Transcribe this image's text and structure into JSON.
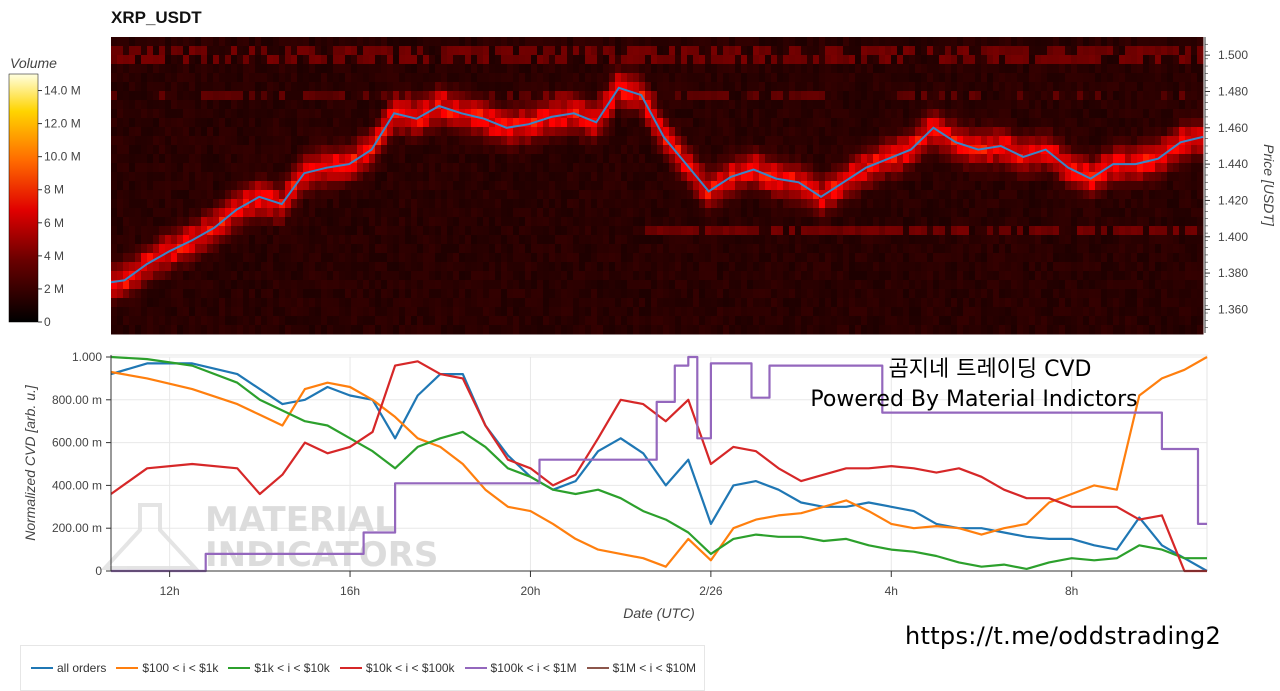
{
  "title": "XRP_USDT",
  "overlay": {
    "line1": "곰지네 트레이딩 CVD",
    "line2": "Powered By Material Indictors"
  },
  "watermark": {
    "line1": "MATERIAL",
    "line2": "INDICATORS"
  },
  "link": "https://t.me/oddstrading2",
  "colors": {
    "all_orders": "#1f77b4",
    "b100_1k": "#ff7f0e",
    "b1k_10k": "#2ca02c",
    "b10k_100k": "#d62728",
    "b100k_1m": "#9467bd",
    "b1m_10m": "#8c564b",
    "price_line": "#3a86c8"
  },
  "chart_data": [
    {
      "type": "heatmap",
      "title": "XRP_USDT",
      "ylabel": "Price [USDT]",
      "ylim": [
        1.347,
        1.51
      ],
      "yticks": [
        "1.360",
        "1.380",
        "1.400",
        "1.420",
        "1.440",
        "1.460",
        "1.480",
        "1.500"
      ],
      "colorbar": {
        "label": "Volume",
        "ticks": [
          "0",
          "2 M",
          "4 M",
          "6 M",
          "8 M",
          "10.0 M",
          "12.0 M",
          "14.0 M"
        ],
        "range": [
          0,
          15
        ]
      },
      "price_series": {
        "name": "price",
        "x_hours": [
          10.7,
          11.0,
          11.5,
          12.0,
          12.5,
          13.0,
          13.5,
          14.0,
          14.5,
          15.0,
          15.5,
          16.0,
          16.5,
          17.0,
          17.5,
          18.0,
          18.5,
          19.0,
          19.5,
          20.0,
          20.5,
          21.0,
          21.5,
          22.0,
          22.5,
          23.0,
          23.5,
          24.0,
          24.5,
          25.0,
          25.5,
          26.0,
          26.5,
          27.0,
          27.5,
          28.0,
          28.5,
          29.0,
          29.5,
          30.0,
          30.5,
          31.0,
          31.5,
          32.0,
          32.5,
          33.0,
          33.5,
          34.0,
          34.5,
          35.0
        ],
        "values": [
          1.375,
          1.376,
          1.385,
          1.392,
          1.398,
          1.405,
          1.415,
          1.422,
          1.418,
          1.435,
          1.438,
          1.44,
          1.448,
          1.468,
          1.465,
          1.472,
          1.468,
          1.465,
          1.46,
          1.462,
          1.466,
          1.468,
          1.463,
          1.482,
          1.478,
          1.455,
          1.44,
          1.425,
          1.433,
          1.437,
          1.432,
          1.43,
          1.422,
          1.43,
          1.438,
          1.443,
          1.448,
          1.46,
          1.452,
          1.448,
          1.45,
          1.444,
          1.448,
          1.438,
          1.432,
          1.44,
          1.44,
          1.443,
          1.452,
          1.455
        ]
      }
    },
    {
      "type": "line",
      "xlabel": "Date (UTC)",
      "ylabel": "Normalized CVD [arb. u.]",
      "xlim_hours": [
        10.7,
        35.0
      ],
      "x_ticks": [
        {
          "hour": 12,
          "label": "12h"
        },
        {
          "hour": 16,
          "label": "16h"
        },
        {
          "hour": 20,
          "label": "20h"
        },
        {
          "hour": 24,
          "label": "2/26"
        },
        {
          "hour": 28,
          "label": "4h"
        },
        {
          "hour": 32,
          "label": "8h"
        }
      ],
      "ylim": [
        0,
        1
      ],
      "y_ticks": [
        {
          "value": 0,
          "label": "0"
        },
        {
          "value": 0.2,
          "label": "200.00 m"
        },
        {
          "value": 0.4,
          "label": "400.00 m"
        },
        {
          "value": 0.6,
          "label": "600.00 m"
        },
        {
          "value": 0.8,
          "label": "800.00 m"
        },
        {
          "value": 1.0,
          "label": "1.000"
        }
      ],
      "series": [
        {
          "name": "all orders",
          "color": "#1f77b4",
          "x": [
            10.7,
            11.5,
            12.5,
            13.5,
            14.0,
            14.5,
            15.0,
            15.5,
            16.0,
            16.5,
            17.0,
            17.5,
            18.0,
            18.5,
            19.0,
            19.5,
            20.0,
            20.5,
            21.0,
            21.5,
            22.0,
            22.5,
            23.0,
            23.5,
            24.0,
            24.5,
            25.0,
            25.5,
            26.0,
            26.5,
            27.0,
            27.5,
            28.0,
            28.5,
            29.0,
            29.5,
            30.0,
            30.5,
            31.0,
            31.5,
            32.0,
            32.5,
            33.0,
            33.5,
            34.0,
            34.5,
            35.0
          ],
          "values": [
            0.92,
            0.97,
            0.97,
            0.92,
            0.85,
            0.78,
            0.8,
            0.86,
            0.82,
            0.8,
            0.62,
            0.82,
            0.92,
            0.92,
            0.68,
            0.54,
            0.44,
            0.38,
            0.42,
            0.56,
            0.62,
            0.55,
            0.4,
            0.52,
            0.22,
            0.4,
            0.42,
            0.38,
            0.32,
            0.3,
            0.3,
            0.32,
            0.3,
            0.28,
            0.22,
            0.2,
            0.2,
            0.18,
            0.16,
            0.15,
            0.15,
            0.12,
            0.1,
            0.25,
            0.12,
            0.06,
            0.0
          ]
        },
        {
          "name": "$100 < i < $1k",
          "color": "#ff7f0e",
          "x": [
            10.7,
            11.5,
            12.5,
            13.5,
            14.0,
            14.5,
            15.0,
            15.5,
            16.0,
            16.5,
            17.0,
            17.5,
            18.0,
            18.5,
            19.0,
            19.5,
            20.0,
            20.5,
            21.0,
            21.5,
            22.0,
            22.5,
            23.0,
            23.5,
            24.0,
            24.5,
            25.0,
            25.5,
            26.0,
            26.5,
            27.0,
            27.5,
            28.0,
            28.5,
            29.0,
            29.5,
            30.0,
            30.5,
            31.0,
            31.5,
            32.0,
            32.5,
            33.0,
            33.5,
            34.0,
            34.5,
            35.0
          ],
          "values": [
            0.93,
            0.9,
            0.85,
            0.78,
            0.73,
            0.68,
            0.85,
            0.88,
            0.86,
            0.8,
            0.72,
            0.62,
            0.58,
            0.5,
            0.38,
            0.3,
            0.28,
            0.22,
            0.15,
            0.1,
            0.08,
            0.06,
            0.02,
            0.15,
            0.05,
            0.2,
            0.24,
            0.26,
            0.27,
            0.3,
            0.33,
            0.28,
            0.22,
            0.2,
            0.21,
            0.2,
            0.17,
            0.2,
            0.22,
            0.32,
            0.36,
            0.4,
            0.38,
            0.82,
            0.9,
            0.94,
            1.0
          ]
        },
        {
          "name": "$1k < i < $10k",
          "color": "#2ca02c",
          "x": [
            10.7,
            11.5,
            12.5,
            13.5,
            14.0,
            14.5,
            15.0,
            15.5,
            16.0,
            16.5,
            17.0,
            17.5,
            18.0,
            18.5,
            19.0,
            19.5,
            20.0,
            20.5,
            21.0,
            21.5,
            22.0,
            22.5,
            23.0,
            23.5,
            24.0,
            24.5,
            25.0,
            25.5,
            26.0,
            26.5,
            27.0,
            27.5,
            28.0,
            28.5,
            29.0,
            29.5,
            30.0,
            30.5,
            31.0,
            31.5,
            32.0,
            32.5,
            33.0,
            33.5,
            34.0,
            34.5,
            35.0
          ],
          "values": [
            1.0,
            0.99,
            0.96,
            0.88,
            0.8,
            0.75,
            0.7,
            0.68,
            0.62,
            0.56,
            0.48,
            0.58,
            0.62,
            0.65,
            0.58,
            0.48,
            0.44,
            0.38,
            0.36,
            0.38,
            0.34,
            0.28,
            0.24,
            0.18,
            0.08,
            0.15,
            0.17,
            0.16,
            0.16,
            0.14,
            0.15,
            0.12,
            0.1,
            0.09,
            0.07,
            0.04,
            0.02,
            0.03,
            0.01,
            0.04,
            0.06,
            0.05,
            0.06,
            0.12,
            0.1,
            0.06,
            0.06
          ]
        },
        {
          "name": "$10k < i < $100k",
          "color": "#d62728",
          "x": [
            10.7,
            11.5,
            12.5,
            13.5,
            14.0,
            14.5,
            15.0,
            15.5,
            16.0,
            16.5,
            17.0,
            17.5,
            18.0,
            18.5,
            19.0,
            19.5,
            20.0,
            20.5,
            21.0,
            21.5,
            22.0,
            22.5,
            23.0,
            23.5,
            24.0,
            24.5,
            25.0,
            25.5,
            26.0,
            26.5,
            27.0,
            27.5,
            28.0,
            28.5,
            29.0,
            29.5,
            30.0,
            30.5,
            31.0,
            31.5,
            32.0,
            32.5,
            33.0,
            33.5,
            34.0,
            34.5,
            35.0
          ],
          "values": [
            0.36,
            0.48,
            0.5,
            0.48,
            0.36,
            0.45,
            0.6,
            0.55,
            0.58,
            0.65,
            0.96,
            0.98,
            0.92,
            0.9,
            0.68,
            0.52,
            0.48,
            0.4,
            0.45,
            0.62,
            0.8,
            0.78,
            0.7,
            0.8,
            0.5,
            0.58,
            0.56,
            0.48,
            0.42,
            0.45,
            0.48,
            0.48,
            0.49,
            0.48,
            0.46,
            0.48,
            0.44,
            0.38,
            0.34,
            0.34,
            0.3,
            0.3,
            0.3,
            0.24,
            0.26,
            0.0,
            0.0
          ]
        },
        {
          "name": "$100k < i < $1M",
          "color": "#9467bd",
          "x": [
            10.7,
            12.5,
            12.8,
            15.5,
            16.3,
            17.0,
            18.3,
            19.5,
            20.2,
            22.0,
            22.8,
            23.2,
            23.5,
            23.7,
            24.0,
            24.5,
            24.9,
            25.0,
            25.3,
            27.2,
            27.8,
            30.5,
            31.2,
            33.2,
            33.5,
            34.0,
            34.8,
            35.0
          ],
          "values": [
            0.0,
            0.0,
            0.08,
            0.08,
            0.18,
            0.41,
            0.41,
            0.41,
            0.52,
            0.52,
            0.79,
            0.96,
            1.0,
            0.62,
            0.97,
            0.97,
            0.81,
            0.81,
            0.96,
            0.96,
            0.74,
            0.74,
            0.74,
            0.74,
            0.74,
            0.57,
            0.22,
            0.22
          ]
        },
        {
          "name": "$1M < i < $10M",
          "color": "#8c564b",
          "x": [],
          "values": []
        }
      ]
    }
  ],
  "legend": [
    {
      "label": "all orders",
      "color": "#1f77b4"
    },
    {
      "label": "$100 < i < $1k",
      "color": "#ff7f0e"
    },
    {
      "label": "$1k < i < $10k",
      "color": "#2ca02c"
    },
    {
      "label": "$10k < i < $100k",
      "color": "#d62728"
    },
    {
      "label": "$100k < i < $1M",
      "color": "#9467bd"
    },
    {
      "label": "$1M < i < $10M",
      "color": "#8c564b"
    }
  ]
}
